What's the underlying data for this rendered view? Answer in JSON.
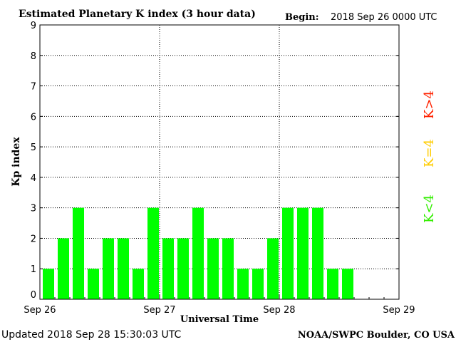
{
  "chart_data": {
    "type": "bar",
    "title": "Estimated Planetary K index (3 hour data)",
    "begin_label": "Begin:",
    "begin_value": "2018 Sep 26 0000 UTC",
    "xlabel": "Universal Time",
    "ylabel": "Kp index",
    "ylim": [
      0,
      9
    ],
    "y_ticks": [
      "0",
      "1",
      "2",
      "3",
      "4",
      "5",
      "6",
      "7",
      "8",
      "9"
    ],
    "x_ticks": [
      "Sep 26",
      "Sep 27",
      "Sep 28",
      "Sep 29"
    ],
    "slots_total": 24,
    "values": [
      1,
      2,
      3,
      1,
      2,
      2,
      1,
      3,
      2,
      2,
      3,
      2,
      2,
      1,
      1,
      2,
      3,
      3,
      3,
      1,
      1
    ],
    "legend": [
      {
        "text": "K<4",
        "color": "#33ee00"
      },
      {
        "text": "K=4",
        "color": "#ffcc00"
      },
      {
        "text": "K>4",
        "color": "#ff2200"
      }
    ],
    "bar_color": "#00ff00",
    "grid": "dotted",
    "footer_left": "Updated 2018 Sep 28 15:30:03 UTC",
    "footer_right": "NOAA/SWPC Boulder, CO USA"
  }
}
